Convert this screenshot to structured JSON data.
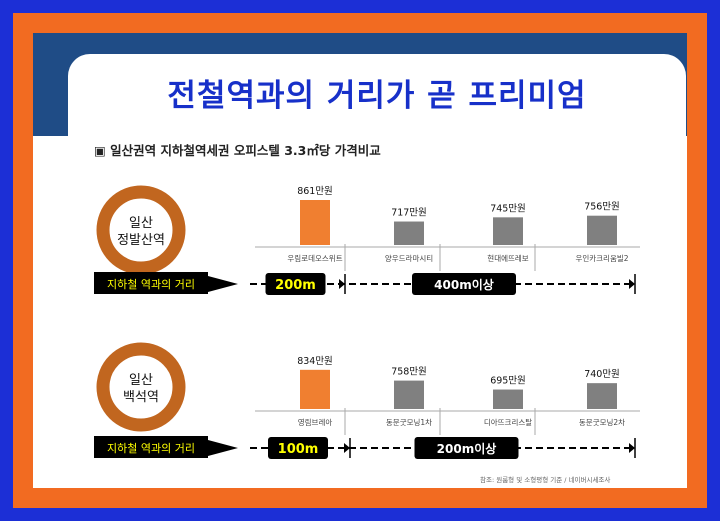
{
  "title": "전철역과의 거리가 곧 프리미엄",
  "subtitle": "▣ 일산권역 지하철역세권 오피스텔 3.3㎡당 가격비교",
  "source": "참조: 원룸형 및 소형평형 기준 / 네이버시세조사",
  "colors": {
    "outer_border": "#1c2fd6",
    "frame": "#f26b21",
    "navy": "#1f4c86",
    "title": "#1730c9",
    "ring": "#c1661f",
    "highlight_bar": "#f07f30",
    "gray_bar": "#808080",
    "dist_label_bg": "#000000",
    "dist_label_text": "#ffff00"
  },
  "chart_data": [
    {
      "type": "bar",
      "station": "일산\n정발산역",
      "station_lines": [
        "일산",
        "정발산역"
      ],
      "distance_label": "지하철 역과의 거리",
      "categories": [
        "우림로데오스위트",
        "양우드라마시티",
        "현대에뜨레보",
        "우인카크리움빌2"
      ],
      "values": [
        861,
        717,
        745,
        756
      ],
      "value_labels": [
        "861만원",
        "717만원",
        "745만원",
        "756만원"
      ],
      "unit": "만원",
      "highlight_index": 0,
      "distance_segments": [
        "200m",
        "400m이상"
      ]
    },
    {
      "type": "bar",
      "station": "일산\n백석역",
      "station_lines": [
        "일산",
        "백석역"
      ],
      "distance_label": "지하철 역과의 거리",
      "categories": [
        "영림브레아",
        "동문굿모닝1차",
        "디아뜨크리스탈",
        "동문굿모닝2차"
      ],
      "values": [
        834,
        758,
        695,
        740
      ],
      "value_labels": [
        "834만원",
        "758만원",
        "695만원",
        "740만원"
      ],
      "unit": "만원",
      "highlight_index": 0,
      "distance_segments": [
        "100m",
        "200m이상"
      ]
    }
  ]
}
